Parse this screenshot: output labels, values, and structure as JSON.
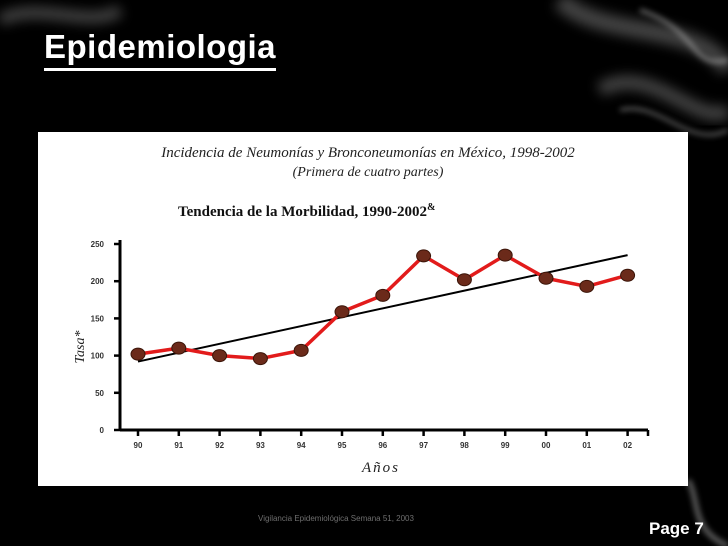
{
  "slide": {
    "title": "Epidemiologia",
    "footer_note": "Vigilancia Epidemiológica Semana 51, 2003",
    "page_label": "Page 7"
  },
  "chart_data": {
    "type": "line",
    "header_title": "Incidencia de Neumonías y Bronconeumonías en México, 1998-2002",
    "header_subtitle": "(Primera de cuatro partes)",
    "title": "Tendencia de la Morbilidad, 1990-2002",
    "title_mark": "&",
    "xlabel": "Años",
    "ylabel": "Tasa*",
    "categories": [
      "90",
      "91",
      "92",
      "93",
      "94",
      "95",
      "96",
      "97",
      "98",
      "99",
      "00",
      "01",
      "02"
    ],
    "series": [
      {
        "values": [
          102,
          110,
          100,
          96,
          107,
          159,
          181,
          234,
          202,
          235,
          204,
          193,
          208
        ]
      }
    ],
    "trendline": {
      "start": 92,
      "end": 235
    },
    "yticks": [
      0,
      50,
      100,
      150,
      200,
      250
    ],
    "ylim": [
      0,
      250
    ],
    "colors": {
      "series": "#e21b1b",
      "marker": "#6b2a1a",
      "trend": "#000000"
    },
    "grid": false
  }
}
